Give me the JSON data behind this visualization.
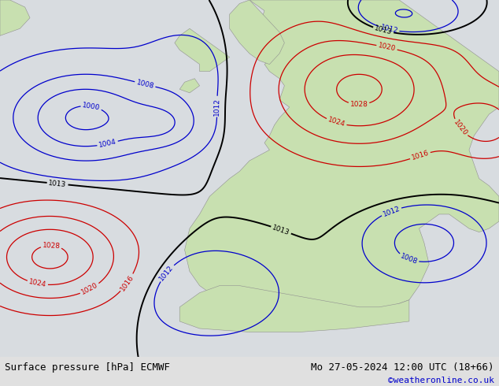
{
  "title_left": "Surface pressure [hPa] ECMWF",
  "title_right": "Mo 27-05-2024 12:00 UTC (18+66)",
  "copyright": "©weatheronline.co.uk",
  "bg_ocean": "#d8dce0",
  "bg_land": "#c8e0b0",
  "bg_land_dark": "#b0c898",
  "fig_width": 6.34,
  "fig_height": 4.9,
  "dpi": 100,
  "bottom_bar_color": "#e8e8e8",
  "title_fontsize": 9,
  "copyright_color": "#0000cc",
  "copyright_fontsize": 8,
  "isobar_levels": [
    1000,
    1004,
    1008,
    1012,
    1013,
    1016,
    1020,
    1024,
    1028
  ],
  "isobar_levels_labeled": [
    1000,
    1004,
    1008,
    1012,
    1013,
    1016,
    1020,
    1024,
    1028
  ]
}
